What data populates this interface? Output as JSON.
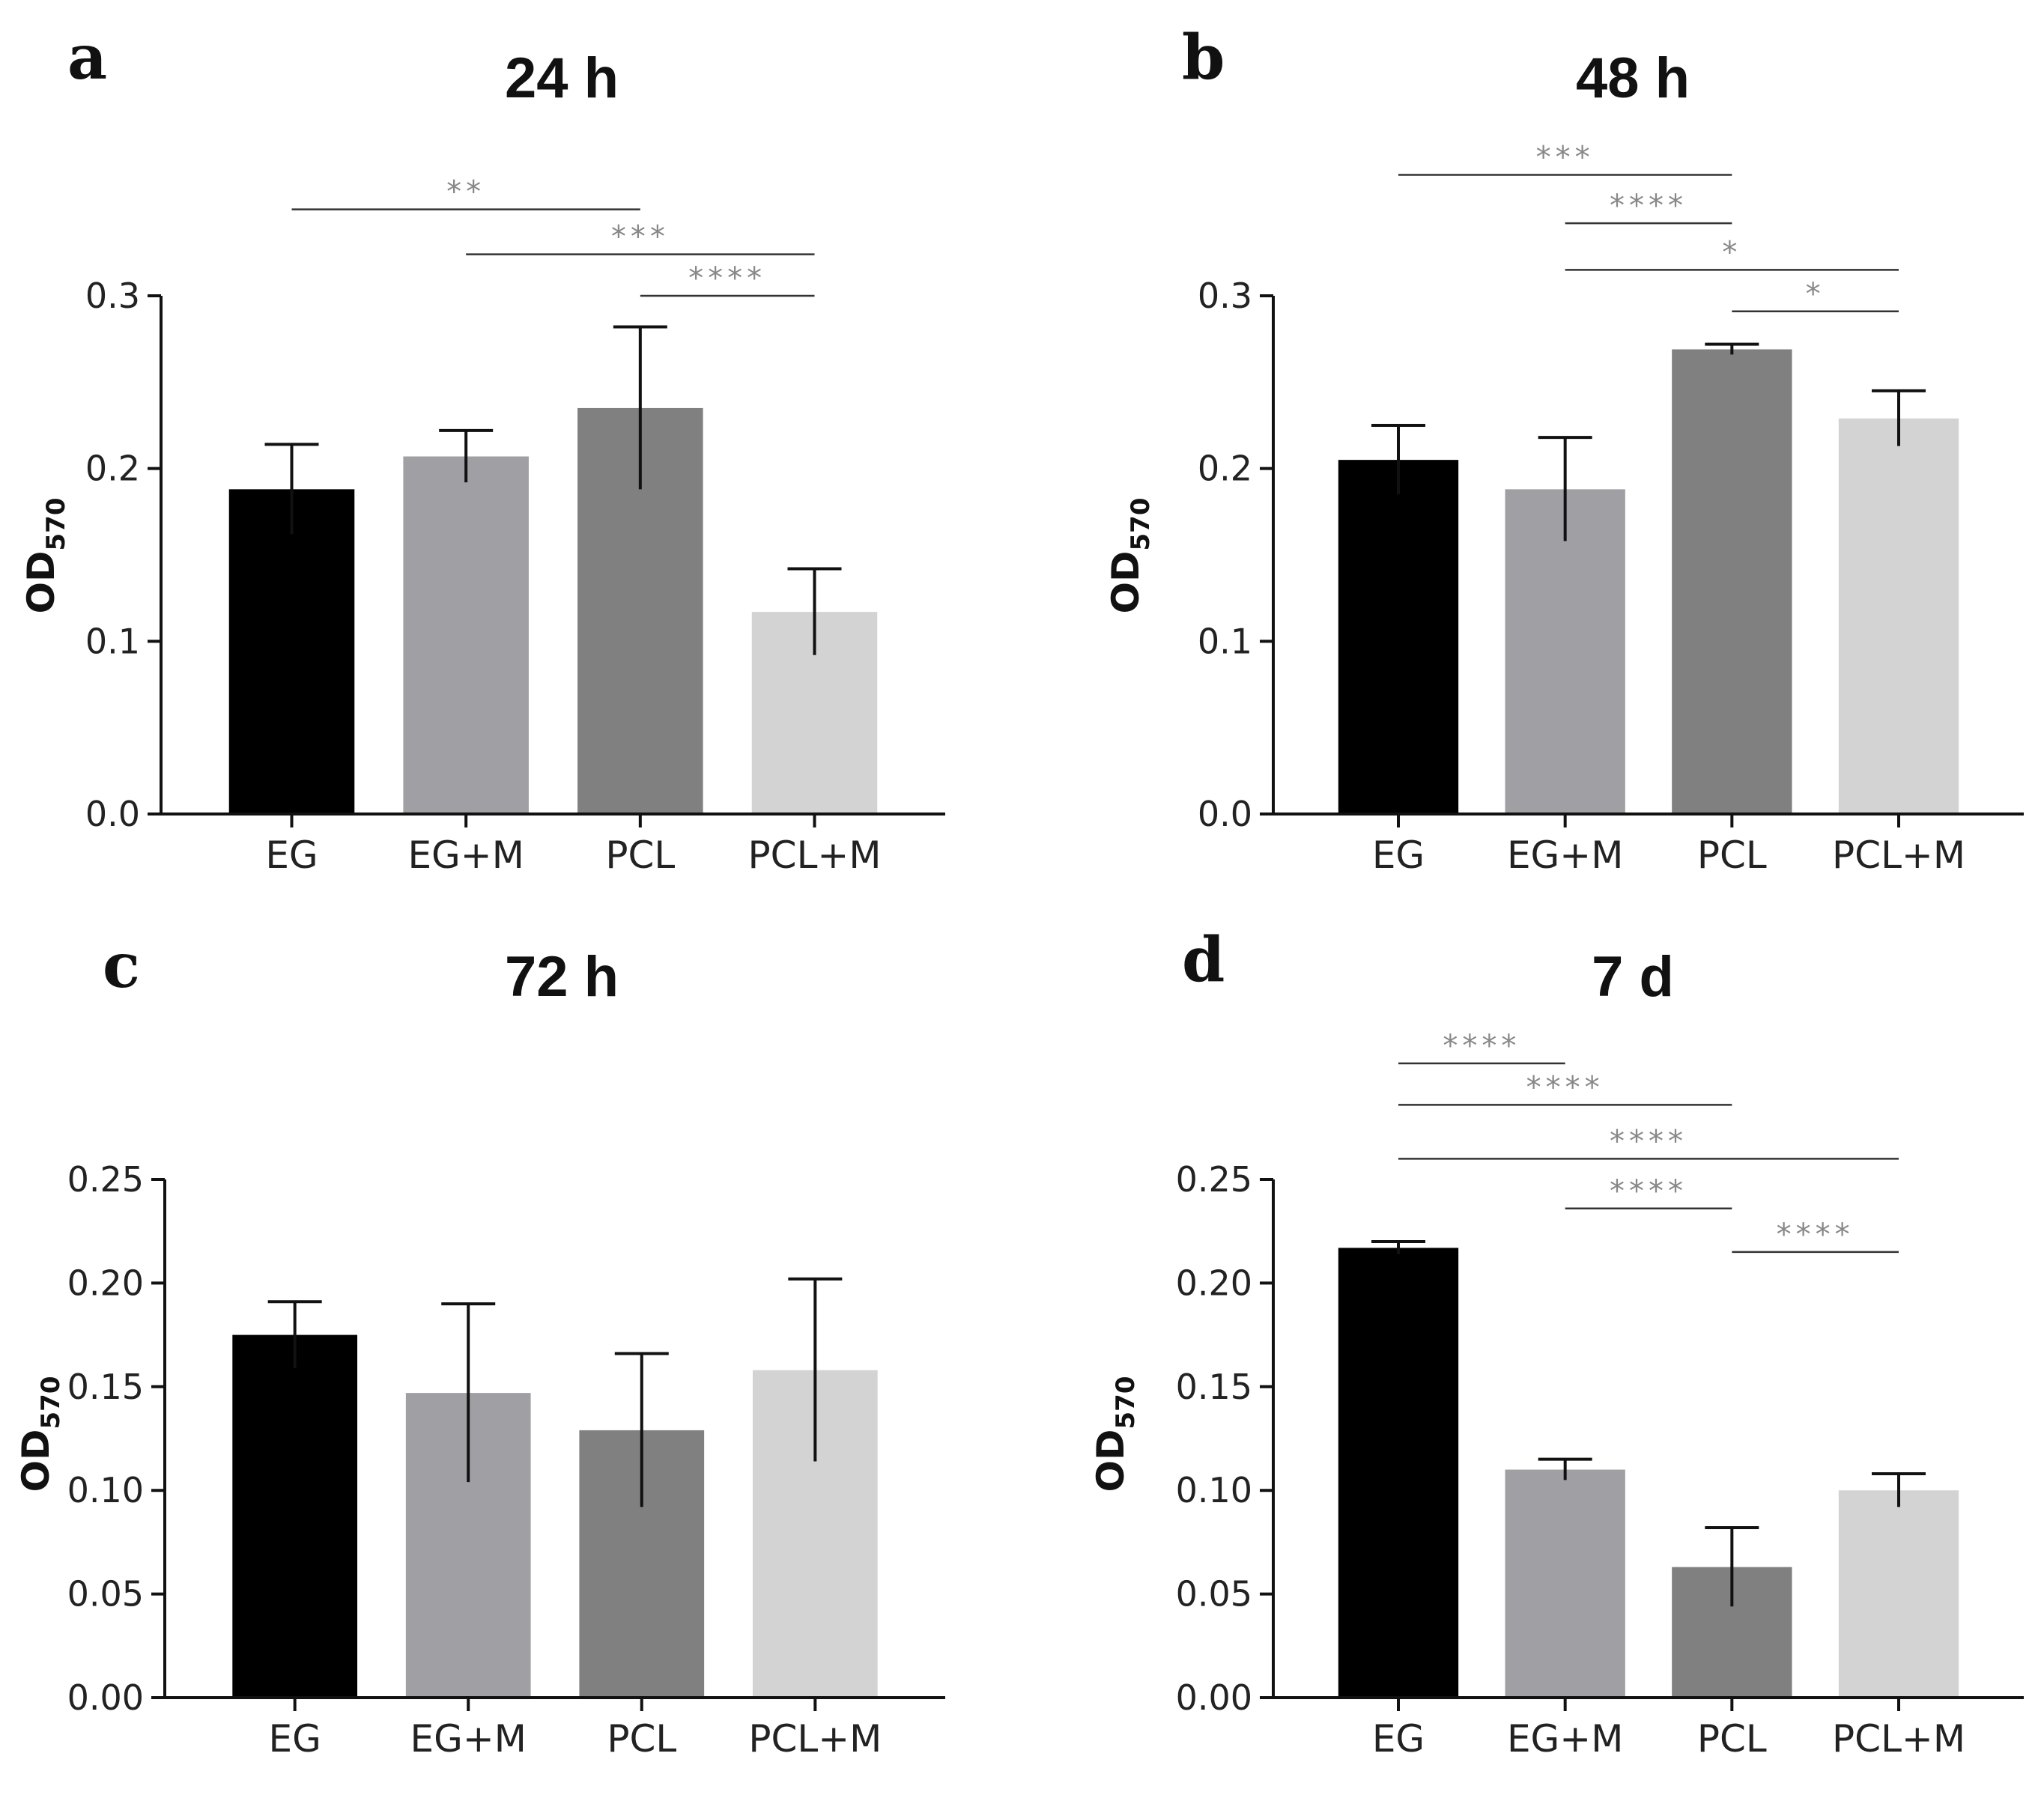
{
  "chart_data": [
    {
      "type": "bar",
      "panel": "a",
      "title": "24 h",
      "ylabel": "OD",
      "ylabel_sub": "570",
      "categories": [
        "EG",
        "EG+M",
        "PCL",
        "PCL+M"
      ],
      "values": [
        0.188,
        0.207,
        0.235,
        0.117
      ],
      "errors": [
        0.026,
        0.015,
        0.047,
        0.025
      ],
      "colors": [
        "#000000",
        "#a0a0a4",
        "#808080",
        "#d3d3d3"
      ],
      "ylim": [
        0,
        0.3
      ],
      "yticks": [
        0,
        0.1,
        0.2,
        0.3
      ],
      "ytick_labels": [
        "0.0",
        "0.1",
        "0.2",
        "0.3"
      ],
      "significance": [
        {
          "from": 0,
          "to": 2,
          "label": "**",
          "y": 0.35
        },
        {
          "from": 1,
          "to": 3,
          "label": "***",
          "y": 0.324
        },
        {
          "from": 2,
          "to": 3,
          "label": "****",
          "y": 0.3
        }
      ]
    },
    {
      "type": "bar",
      "panel": "b",
      "title": "48 h",
      "ylabel": "OD",
      "ylabel_sub": "570",
      "categories": [
        "EG",
        "EG+M",
        "PCL",
        "PCL+M"
      ],
      "values": [
        0.205,
        0.188,
        0.269,
        0.229
      ],
      "errors": [
        0.02,
        0.03,
        0.003,
        0.016
      ],
      "colors": [
        "#000000",
        "#a0a0a4",
        "#808080",
        "#d3d3d3"
      ],
      "ylim": [
        0,
        0.3
      ],
      "yticks": [
        0,
        0.1,
        0.2,
        0.3
      ],
      "ytick_labels": [
        "0.0",
        "0.1",
        "0.2",
        "0.3"
      ],
      "significance": [
        {
          "from": 0,
          "to": 2,
          "label": "***",
          "y": 0.37
        },
        {
          "from": 1,
          "to": 2,
          "label": "****",
          "y": 0.342
        },
        {
          "from": 1,
          "to": 3,
          "label": "*",
          "y": 0.315
        },
        {
          "from": 2,
          "to": 3,
          "label": "*",
          "y": 0.291
        }
      ]
    },
    {
      "type": "bar",
      "panel": "c",
      "title": "72 h",
      "ylabel": "OD",
      "ylabel_sub": "570",
      "categories": [
        "EG",
        "EG+M",
        "PCL",
        "PCL+M"
      ],
      "values": [
        0.175,
        0.147,
        0.129,
        0.158
      ],
      "errors": [
        0.016,
        0.043,
        0.037,
        0.044
      ],
      "colors": [
        "#000000",
        "#a0a0a4",
        "#808080",
        "#d3d3d3"
      ],
      "ylim": [
        0,
        0.25
      ],
      "yticks": [
        0,
        0.05,
        0.1,
        0.15,
        0.2,
        0.25
      ],
      "ytick_labels": [
        "0.00",
        "0.05",
        "0.10",
        "0.15",
        "0.20",
        "0.25"
      ],
      "significance": []
    },
    {
      "type": "bar",
      "panel": "d",
      "title": "7 d",
      "ylabel": "OD",
      "ylabel_sub": "570",
      "categories": [
        "EG",
        "EG+M",
        "PCL",
        "PCL+M"
      ],
      "values": [
        0.217,
        0.11,
        0.063,
        0.1
      ],
      "errors": [
        0.003,
        0.005,
        0.019,
        0.008
      ],
      "colors": [
        "#000000",
        "#a0a0a4",
        "#808080",
        "#d3d3d3"
      ],
      "ylim": [
        0,
        0.25
      ],
      "yticks": [
        0,
        0.05,
        0.1,
        0.15,
        0.2,
        0.25
      ],
      "ytick_labels": [
        "0.00",
        "0.05",
        "0.10",
        "0.15",
        "0.20",
        "0.25"
      ],
      "significance": [
        {
          "from": 0,
          "to": 1,
          "label": "****",
          "y": 0.306
        },
        {
          "from": 0,
          "to": 2,
          "label": "****",
          "y": 0.286
        },
        {
          "from": 0,
          "to": 3,
          "label": "****",
          "y": 0.26
        },
        {
          "from": 1,
          "to": 2,
          "label": "****",
          "y": 0.236
        },
        {
          "from": 2,
          "to": 3,
          "label": "****",
          "y": 0.215
        }
      ]
    }
  ]
}
